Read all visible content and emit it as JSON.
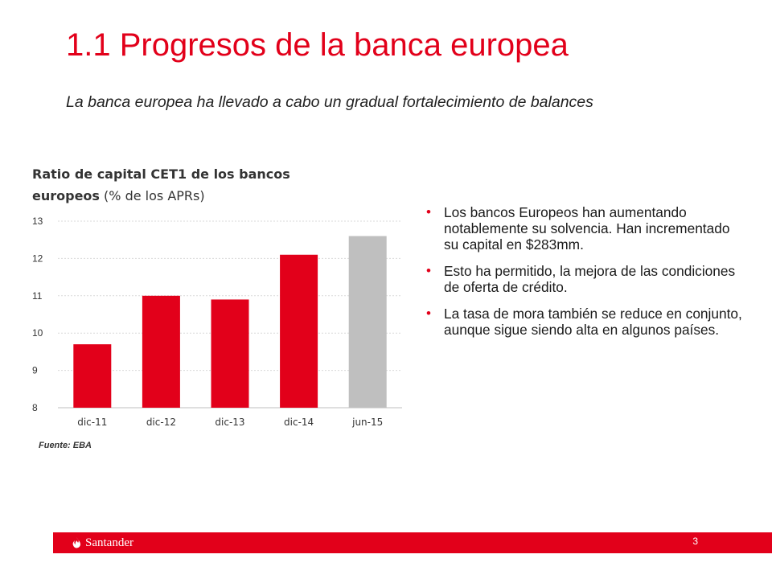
{
  "slide": {
    "title": "1.1 Progresos de la banca europea",
    "subtitle": "La banca europea ha llevado a cabo un gradual fortalecimiento de balances",
    "page_number": "3",
    "brand": "Santander",
    "colors": {
      "accent": "#e2001a",
      "bar": "#e2001a",
      "bar_highlight": "#bfbfbf"
    }
  },
  "chart_data": {
    "type": "bar",
    "title_bold_line1": "Ratio de capital CET1 de los bancos",
    "title_bold_line2": "europeos",
    "title_unit": "(% de los APRs)",
    "categories": [
      "dic-11",
      "dic-12",
      "dic-13",
      "dic-14",
      "jun-15"
    ],
    "values": [
      9.7,
      11.0,
      10.9,
      12.1,
      12.6
    ],
    "bar_colors": [
      "#e2001a",
      "#e2001a",
      "#e2001a",
      "#e2001a",
      "#bfbfbf"
    ],
    "ylim": [
      8,
      13
    ],
    "yticks": [
      8,
      9,
      10,
      11,
      12,
      13
    ],
    "grid": true,
    "source": "Fuente: EBA"
  },
  "bullets": [
    "Los bancos Europeos han aumentando notablemente su solvencia. Han incrementado su capital en $283mm.",
    "Esto ha permitido, la mejora de las condiciones de oferta de crédito.",
    "La tasa de mora también se reduce en conjunto, aunque sigue siendo alta en algunos países."
  ]
}
